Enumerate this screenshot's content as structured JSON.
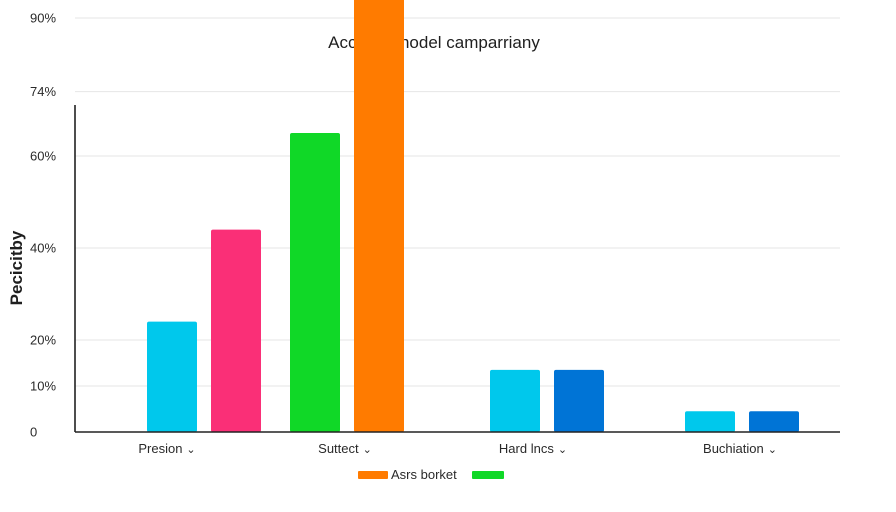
{
  "chart_data": {
    "type": "bar",
    "title": "Accurate nodel camparriany",
    "xlabel": "",
    "ylabel": "Pecicitby",
    "ylim": [
      0,
      100
    ],
    "grid": true,
    "y_ticks": [
      {
        "value": 0,
        "label": "0"
      },
      {
        "value": 10,
        "label": "10%"
      },
      {
        "value": 20,
        "label": "20%"
      },
      {
        "value": 40,
        "label": "40%"
      },
      {
        "value": 60,
        "label": "60%"
      },
      {
        "value": 74,
        "label": "74%"
      },
      {
        "value": 90,
        "label": "90%"
      }
    ],
    "categories": [
      {
        "label": "Presion",
        "dropdown_glyph": "⌄"
      },
      {
        "label": "Suttect",
        "dropdown_glyph": "⌄"
      },
      {
        "label": "Hard lncs",
        "dropdown_glyph": "⌄"
      },
      {
        "label": "Buchiation",
        "dropdown_glyph": "⌄"
      }
    ],
    "bars": [
      {
        "category": "Presion",
        "value": 24,
        "color": "#00c8ec"
      },
      {
        "category": "Presion",
        "value": 44,
        "color": "#fa2f77"
      },
      {
        "category": "Suttect",
        "value": 65,
        "color": "#10d827"
      },
      {
        "category": "Suttect",
        "value": 98,
        "color": "#ff7b00"
      },
      {
        "category": "Hard lncs",
        "value": 13.5,
        "color": "#00c8ec"
      },
      {
        "category": "Hard lncs",
        "value": 13.5,
        "color": "#0074d6"
      },
      {
        "category": "Buchiation",
        "value": 4.5,
        "color": "#00c8ec"
      },
      {
        "category": "Buchiation",
        "value": 4.5,
        "color": "#0074d6"
      }
    ],
    "legend": {
      "placement": "bottom-center",
      "entries": [
        {
          "name": "Asrs borket",
          "color": "#ff7b00"
        },
        {
          "name": "",
          "color": "#10d827"
        }
      ]
    }
  }
}
